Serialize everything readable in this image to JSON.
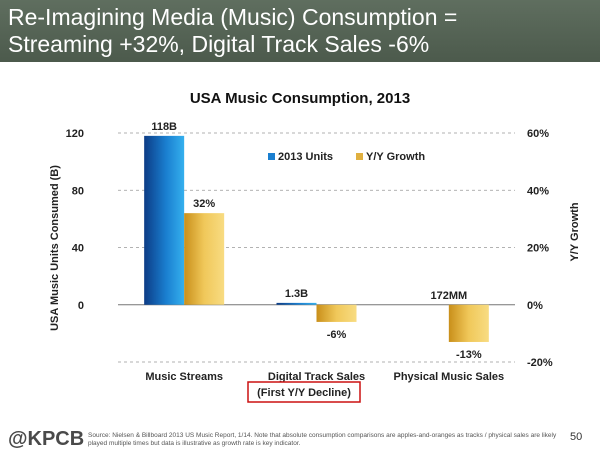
{
  "header": {
    "line1": "Re-Imagining Media (Music) Consumption =",
    "line2": "Streaming +32%, Digital Track Sales -6%"
  },
  "chart_data": {
    "type": "bar",
    "title": "USA Music Consumption, 2013",
    "categories": [
      "Music Streams",
      "Digital Track Sales",
      "Physical Music Sales"
    ],
    "category_note": "(First Y/Y Decline)",
    "ylabel": "USA Music Units Consumed (B)",
    "y2label": "Y/Y Growth",
    "ylim": [
      -40,
      120
    ],
    "y_ticks": [
      "0",
      "40",
      "80",
      "120"
    ],
    "y2lim": [
      -20,
      60
    ],
    "y2_ticks": [
      "-20%",
      "0%",
      "20%",
      "40%",
      "60%"
    ],
    "legend_position": "top-center",
    "series": [
      {
        "name": "2013 Units",
        "axis": "left",
        "values": [
          118,
          1.3,
          null
        ],
        "labels": [
          "118B",
          "1.3B",
          "172MM"
        ],
        "color": "#1a7fd0"
      },
      {
        "name": "Y/Y Growth",
        "axis": "right",
        "values": [
          32,
          -6,
          -13
        ],
        "labels": [
          "32%",
          "-6%",
          "-13%"
        ],
        "color": "#e0b040"
      }
    ]
  },
  "footer": {
    "logo": "@KPCB",
    "source": "Source: Nielsen & Billboard 2013 US Music Report, 1/14. Note that absolute consumption comparisons are apples-and-oranges as tracks / physical sales are likely played multiple times but data is illustrative as growth rate is key indicator.",
    "page_number": "50"
  }
}
